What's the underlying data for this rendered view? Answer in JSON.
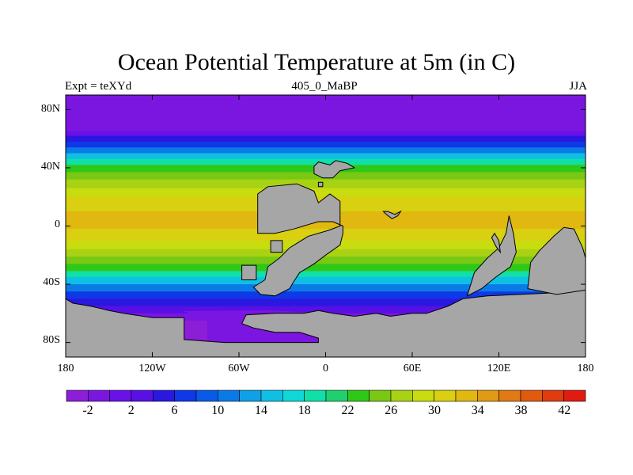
{
  "figure": {
    "title": "Ocean Potential Temperature at 5m (in C)",
    "left_string": "Expt = teXYd",
    "center_string": "405_0_MaBP",
    "right_string": "JJA"
  },
  "axes": {
    "x_ticks": [
      "180",
      "120W",
      "60W",
      "0",
      "60E",
      "120E",
      "180"
    ],
    "y_ticks": [
      "80N",
      "40N",
      "0",
      "40S",
      "80S"
    ]
  },
  "colorbar": {
    "labels": [
      "-2",
      "2",
      "6",
      "10",
      "14",
      "18",
      "22",
      "26",
      "30",
      "34",
      "38",
      "42"
    ],
    "colors": [
      "#8b1ed6",
      "#7a16e0",
      "#6a10e8",
      "#5810e4",
      "#2a18e0",
      "#0f38e6",
      "#0a5ae8",
      "#0a7ae6",
      "#0fa0e6",
      "#0fc0e4",
      "#0fd8d8",
      "#10e0a8",
      "#20d070",
      "#30c818",
      "#7ac814",
      "#a8d214",
      "#c8dc10",
      "#d8d010",
      "#e0b810",
      "#e09a14",
      "#e07a14",
      "#e05a10",
      "#e03c10",
      "#e01c10"
    ]
  },
  "map": {
    "land_color": "#a6a6a6",
    "bands": [
      {
        "lat": 90,
        "color": "#7a16e0"
      },
      {
        "lat": 65,
        "color": "#6a10e8"
      },
      {
        "lat": 62,
        "color": "#2a18e0"
      },
      {
        "lat": 58,
        "color": "#0f38e6"
      },
      {
        "lat": 54,
        "color": "#0a7ae6"
      },
      {
        "lat": 50,
        "color": "#0fc0e4"
      },
      {
        "lat": 46,
        "color": "#10e0a8"
      },
      {
        "lat": 42,
        "color": "#30c818"
      },
      {
        "lat": 37,
        "color": "#7ac814"
      },
      {
        "lat": 32,
        "color": "#a8d214"
      },
      {
        "lat": 26,
        "color": "#c8dc10"
      },
      {
        "lat": 20,
        "color": "#d8d010"
      },
      {
        "lat": 10,
        "color": "#e0b810"
      },
      {
        "lat": -2,
        "color": "#d8d010"
      },
      {
        "lat": -10,
        "color": "#c8dc10"
      },
      {
        "lat": -16,
        "color": "#a8d214"
      },
      {
        "lat": -21,
        "color": "#7ac814"
      },
      {
        "lat": -26,
        "color": "#30c818"
      },
      {
        "lat": -31,
        "color": "#10e0a8"
      },
      {
        "lat": -35,
        "color": "#0fc0e4"
      },
      {
        "lat": -40,
        "color": "#0a7ae6"
      },
      {
        "lat": -45,
        "color": "#0f38e6"
      },
      {
        "lat": -50,
        "color": "#2a18e0"
      },
      {
        "lat": -55,
        "color": "#5810e4"
      },
      {
        "lat": -60,
        "color": "#7a16e0"
      },
      {
        "lat": -65,
        "color": "#8b1ed6"
      }
    ]
  }
}
